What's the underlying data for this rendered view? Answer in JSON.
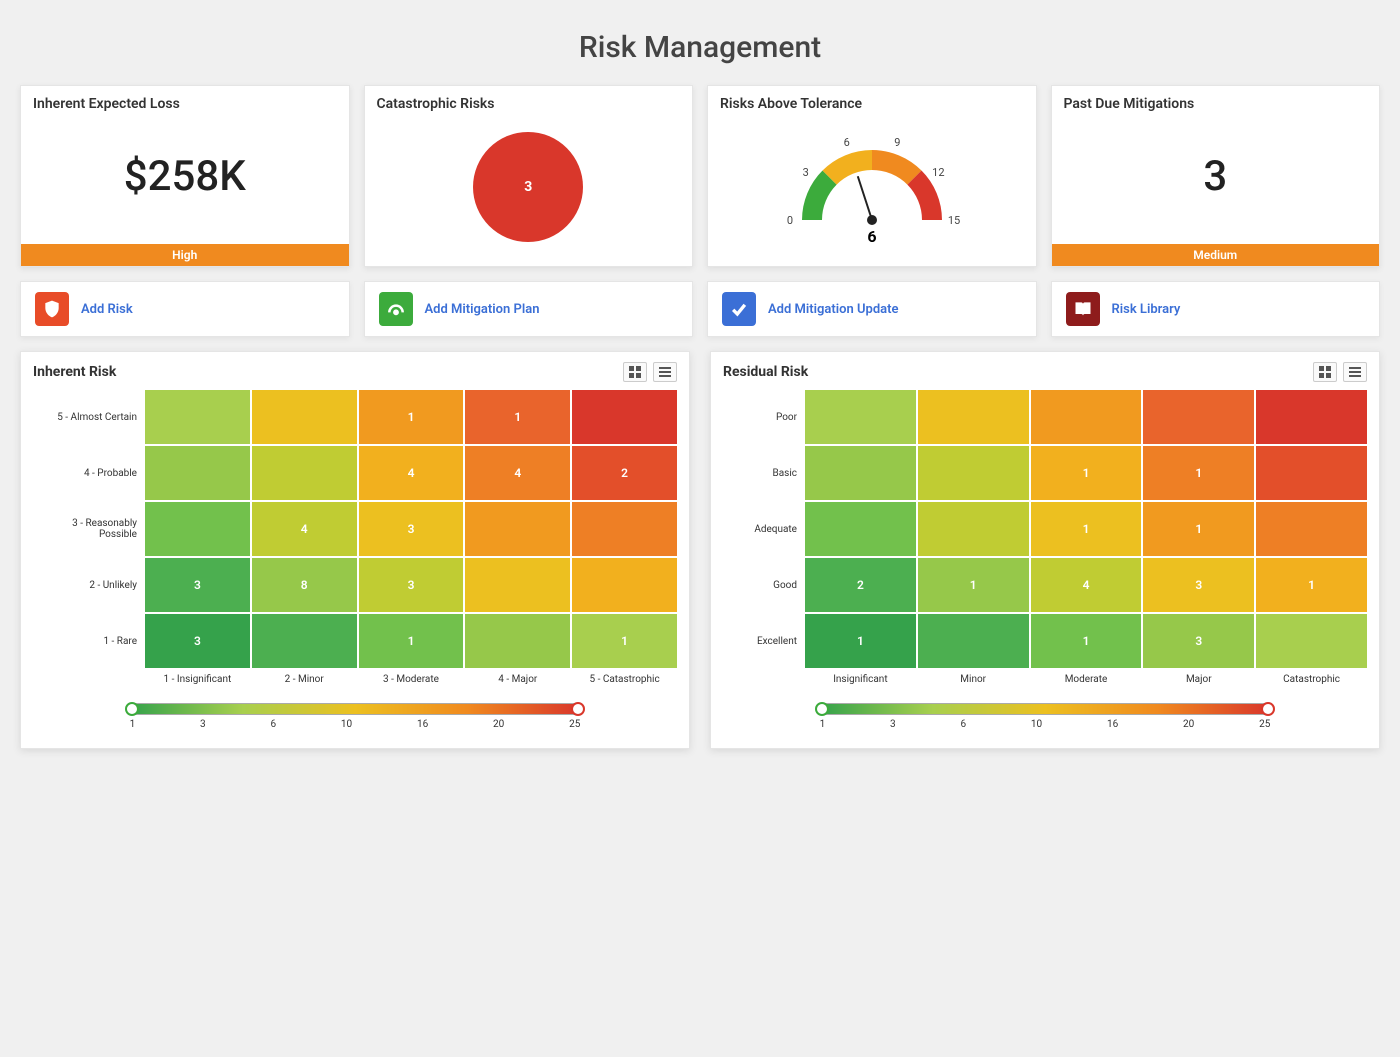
{
  "page": {
    "title": "Risk Management"
  },
  "kpi": {
    "expected_loss": {
      "title": "Inherent Expected Loss",
      "value": "$258K",
      "status_label": "High",
      "status_color": "#f08a1f"
    },
    "catastrophic": {
      "title": "Catastrophic Risks",
      "value": "3",
      "pie_color": "#d9372b"
    },
    "tolerance": {
      "title": "Risks Above Tolerance",
      "value": "6",
      "ticks": [
        "0",
        "3",
        "6",
        "9",
        "12",
        "15"
      ],
      "segments": [
        {
          "color": "#3cab3c"
        },
        {
          "color": "#f2b01e"
        },
        {
          "color": "#f08a1f"
        },
        {
          "color": "#d9372b"
        }
      ],
      "needle_angle_deg": 0
    },
    "past_due": {
      "title": "Past Due Mitigations",
      "value": "3",
      "status_label": "Medium",
      "status_color": "#f08a1f"
    }
  },
  "actions": [
    {
      "label": "Add Risk",
      "icon_bg": "#e84c28",
      "icon_name": "shield-icon"
    },
    {
      "label": "Add Mitigation Plan",
      "icon_bg": "#3cab3c",
      "icon_name": "gauge-icon"
    },
    {
      "label": "Add Mitigation Update",
      "icon_bg": "#3b6fd6",
      "icon_name": "check-icon"
    },
    {
      "label": "Risk Library",
      "icon_bg": "#8e1c1c",
      "icon_name": "book-icon"
    }
  ],
  "inherent": {
    "type": "heatmap",
    "title": "Inherent Risk",
    "row_labels": [
      "5 - Almost Certain",
      "4 - Probable",
      "3 - Reasonably Possible",
      "2 - Unlikely",
      "1 - Rare"
    ],
    "col_labels": [
      "1 - Insignificant",
      "2 - Minor",
      "3 - Moderate",
      "4 - Major",
      "5 - Catastrophic"
    ],
    "row_label_width": "110px",
    "cells": [
      [
        {
          "c": "#a8cf4e"
        },
        {
          "c": "#ecc020"
        },
        {
          "c": "#f19a1f",
          "v": "1"
        },
        {
          "c": "#e9642c",
          "v": "1"
        },
        {
          "c": "#d9372b"
        }
      ],
      [
        {
          "c": "#96c84a"
        },
        {
          "c": "#c0cc33"
        },
        {
          "c": "#f2b01e",
          "v": "4"
        },
        {
          "c": "#ee7f25",
          "v": "4"
        },
        {
          "c": "#e34f2a",
          "v": "2"
        }
      ],
      [
        {
          "c": "#72c14c"
        },
        {
          "c": "#c0cc33",
          "v": "4"
        },
        {
          "c": "#ecc020",
          "v": "3"
        },
        {
          "c": "#f19a1f"
        },
        {
          "c": "#ee7f25"
        }
      ],
      [
        {
          "c": "#4caf50",
          "v": "3"
        },
        {
          "c": "#96c84a",
          "v": "8"
        },
        {
          "c": "#c0cc33",
          "v": "3"
        },
        {
          "c": "#ecc020"
        },
        {
          "c": "#f2b01e"
        }
      ],
      [
        {
          "c": "#35a24b",
          "v": "3"
        },
        {
          "c": "#4caf50"
        },
        {
          "c": "#72c14c",
          "v": "1"
        },
        {
          "c": "#96c84a"
        },
        {
          "c": "#a8cf4e",
          "v": "1"
        }
      ]
    ],
    "legend": {
      "min": "1",
      "ticks": [
        "1",
        "3",
        "6",
        "10",
        "16",
        "20",
        "25"
      ],
      "max": "25",
      "gradient_css": "linear-gradient(90deg,#35a24b,#a8cf4e,#ecc020,#f08a1f,#d9372b)"
    }
  },
  "residual": {
    "type": "heatmap",
    "title": "Residual Risk",
    "row_labels": [
      "Poor",
      "Basic",
      "Adequate",
      "Good",
      "Excellent"
    ],
    "col_labels": [
      "Insignificant",
      "Minor",
      "Moderate",
      "Major",
      "Catastrophic"
    ],
    "row_label_width": "80px",
    "cells": [
      [
        {
          "c": "#a8cf4e"
        },
        {
          "c": "#ecc020"
        },
        {
          "c": "#f19a1f"
        },
        {
          "c": "#e9642c"
        },
        {
          "c": "#d9372b"
        }
      ],
      [
        {
          "c": "#96c84a"
        },
        {
          "c": "#c0cc33"
        },
        {
          "c": "#f2b01e",
          "v": "1"
        },
        {
          "c": "#ee7f25",
          "v": "1"
        },
        {
          "c": "#e34f2a"
        }
      ],
      [
        {
          "c": "#72c14c"
        },
        {
          "c": "#c0cc33"
        },
        {
          "c": "#ecc020",
          "v": "1"
        },
        {
          "c": "#f19a1f",
          "v": "1"
        },
        {
          "c": "#ee7f25"
        }
      ],
      [
        {
          "c": "#4caf50",
          "v": "2"
        },
        {
          "c": "#96c84a",
          "v": "1"
        },
        {
          "c": "#c0cc33",
          "v": "4"
        },
        {
          "c": "#ecc020",
          "v": "3"
        },
        {
          "c": "#f2b01e",
          "v": "1"
        }
      ],
      [
        {
          "c": "#35a24b",
          "v": "1"
        },
        {
          "c": "#4caf50"
        },
        {
          "c": "#72c14c",
          "v": "1"
        },
        {
          "c": "#96c84a",
          "v": "3"
        },
        {
          "c": "#a8cf4e"
        }
      ]
    ],
    "legend": {
      "min": "1",
      "ticks": [
        "1",
        "3",
        "6",
        "10",
        "16",
        "20",
        "25"
      ],
      "max": "25",
      "gradient_css": "linear-gradient(90deg,#35a24b,#a8cf4e,#ecc020,#f08a1f,#d9372b)"
    }
  }
}
